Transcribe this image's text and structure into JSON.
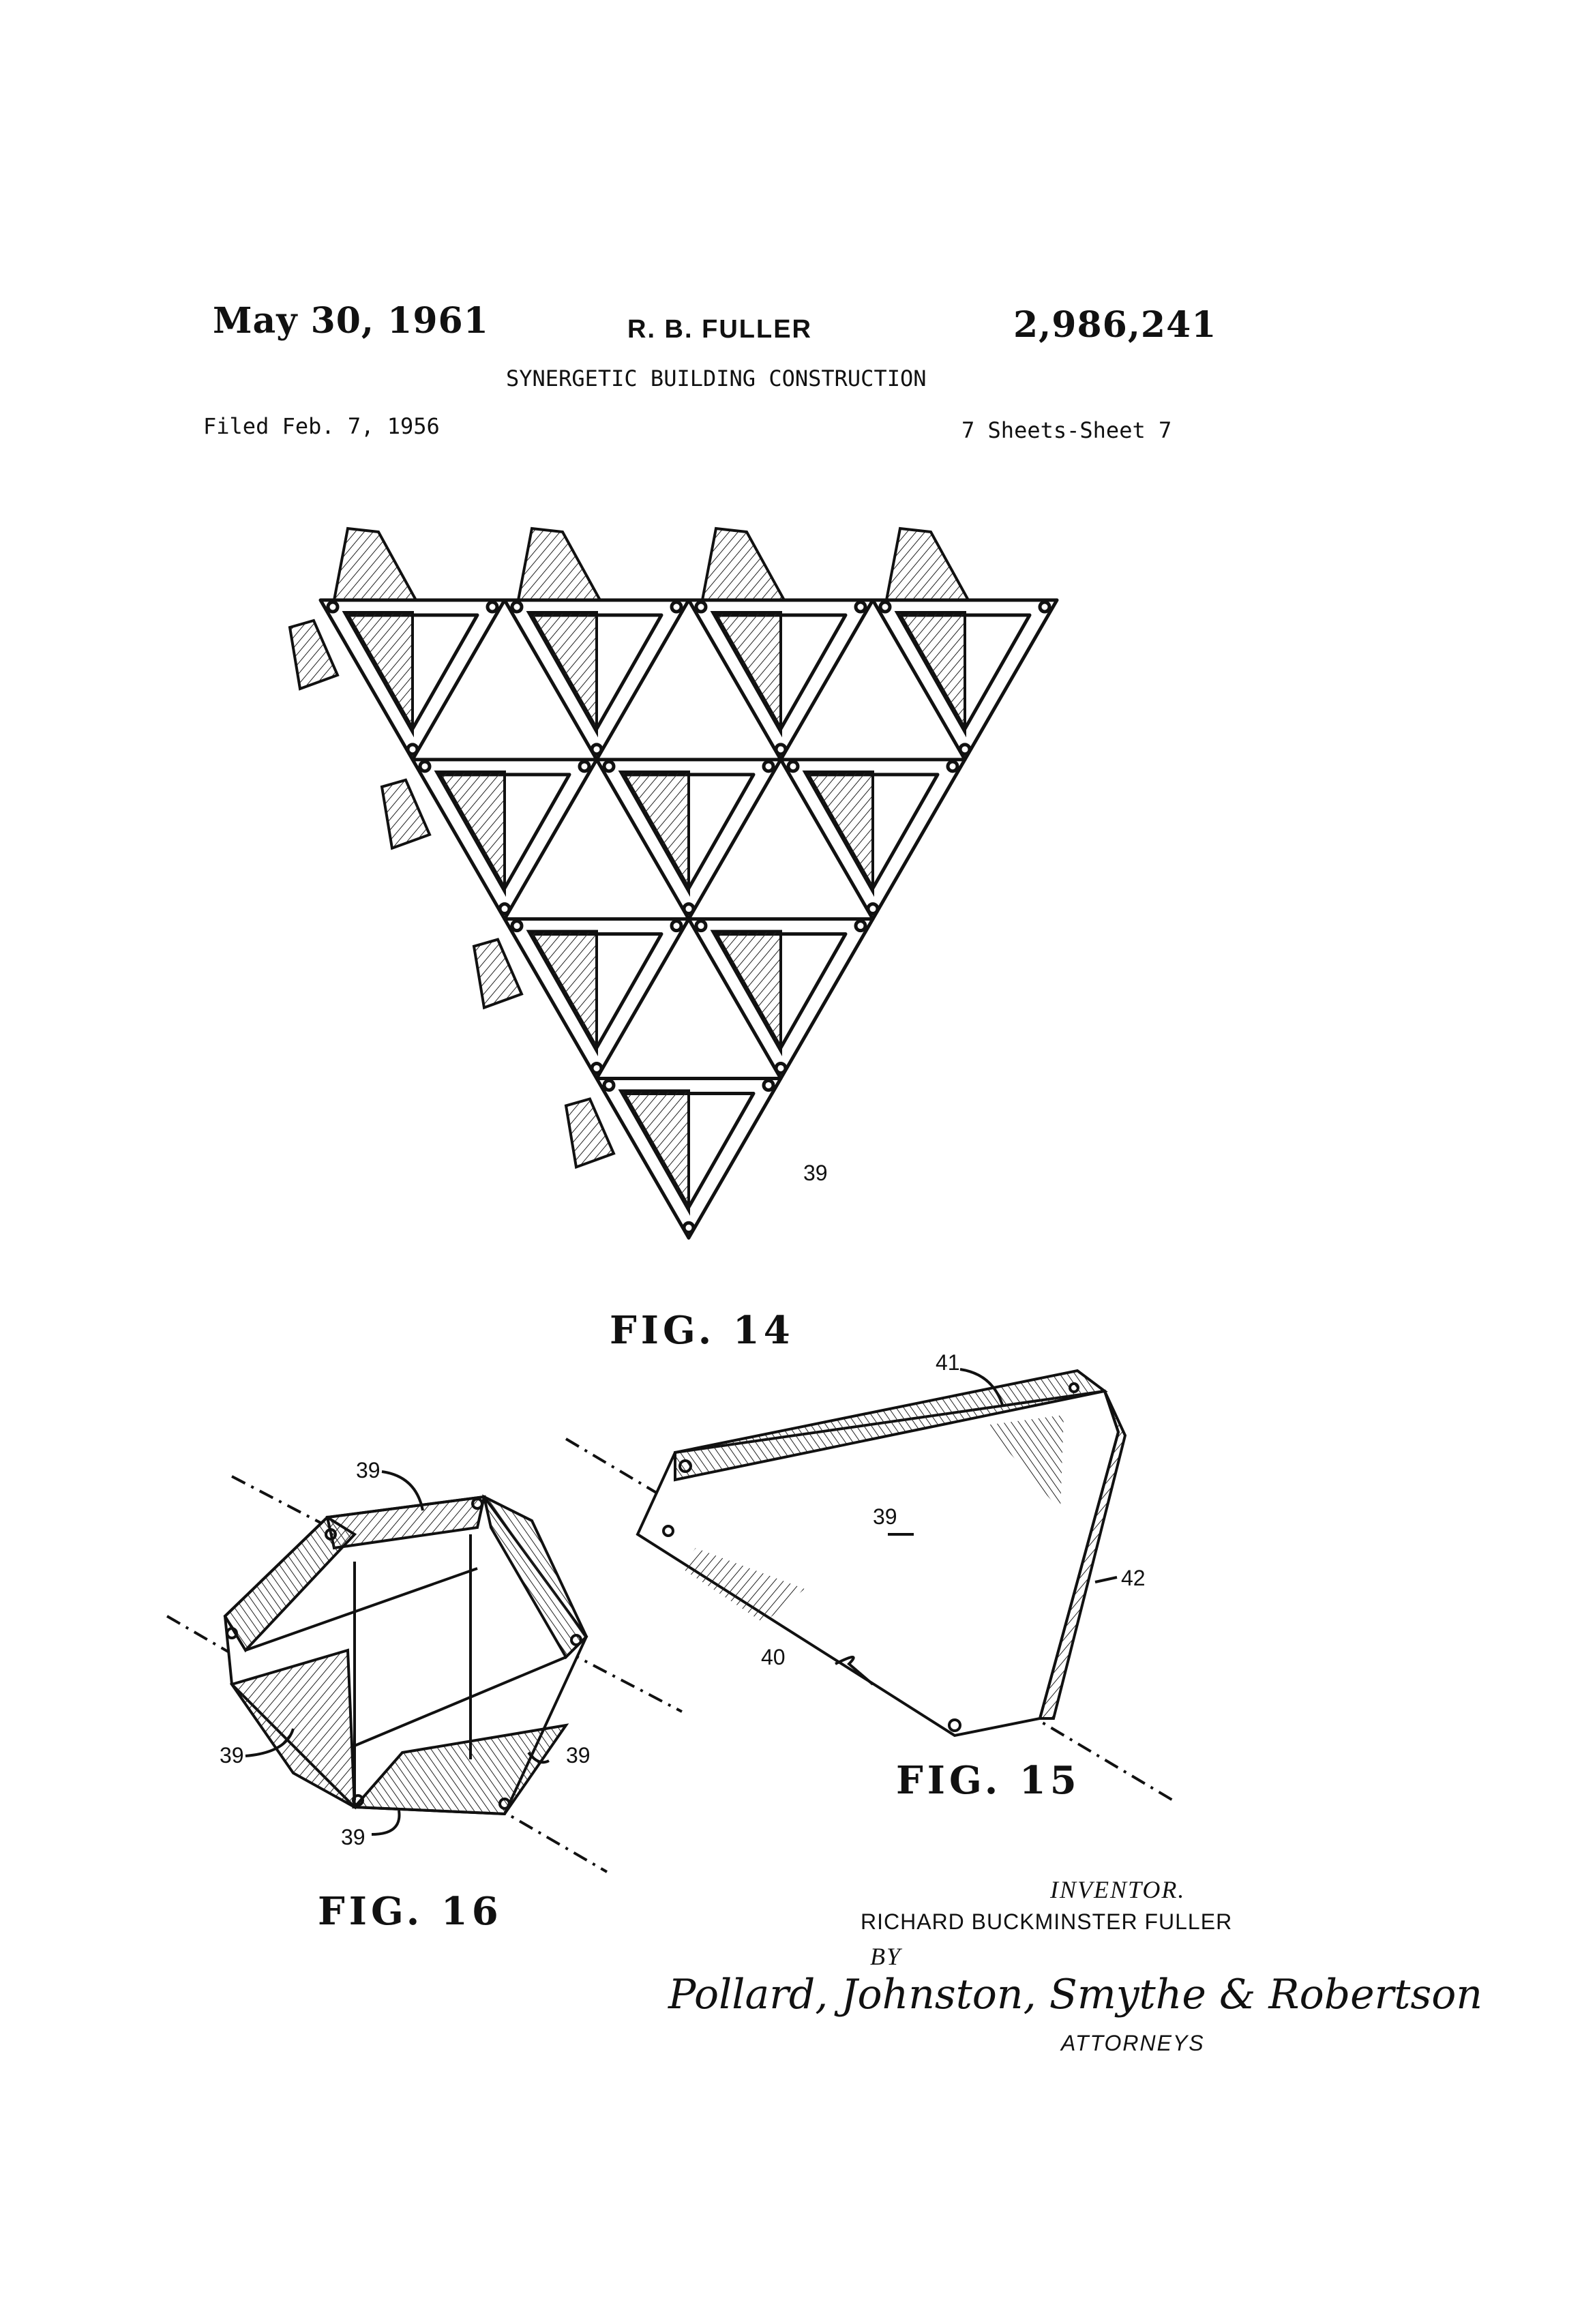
{
  "header": {
    "date": "May 30, 1961",
    "inventor_short": "R. B. FULLER",
    "patent_number": "2,986,241",
    "title": "SYNERGETIC BUILDING CONSTRUCTION",
    "filed": "Filed Feb. 7, 1956",
    "sheets": "7 Sheets-Sheet 7"
  },
  "figures": {
    "fig14": {
      "label": "FIG. 14",
      "ref": "39"
    },
    "fig15": {
      "label": "FIG. 15",
      "refs": [
        "41",
        "39",
        "42",
        "40"
      ]
    },
    "fig16": {
      "label": "FIG. 16",
      "refs": [
        "39",
        "39",
        "39",
        "39"
      ]
    }
  },
  "footer": {
    "inventor_heading": "INVENTOR.",
    "inventor_name": "RICHARD BUCKMINSTER FULLER",
    "by": "BY",
    "signature": "Pollard, Johnston, Smythe & Robertson",
    "attorneys": "ATTORNEYS"
  }
}
